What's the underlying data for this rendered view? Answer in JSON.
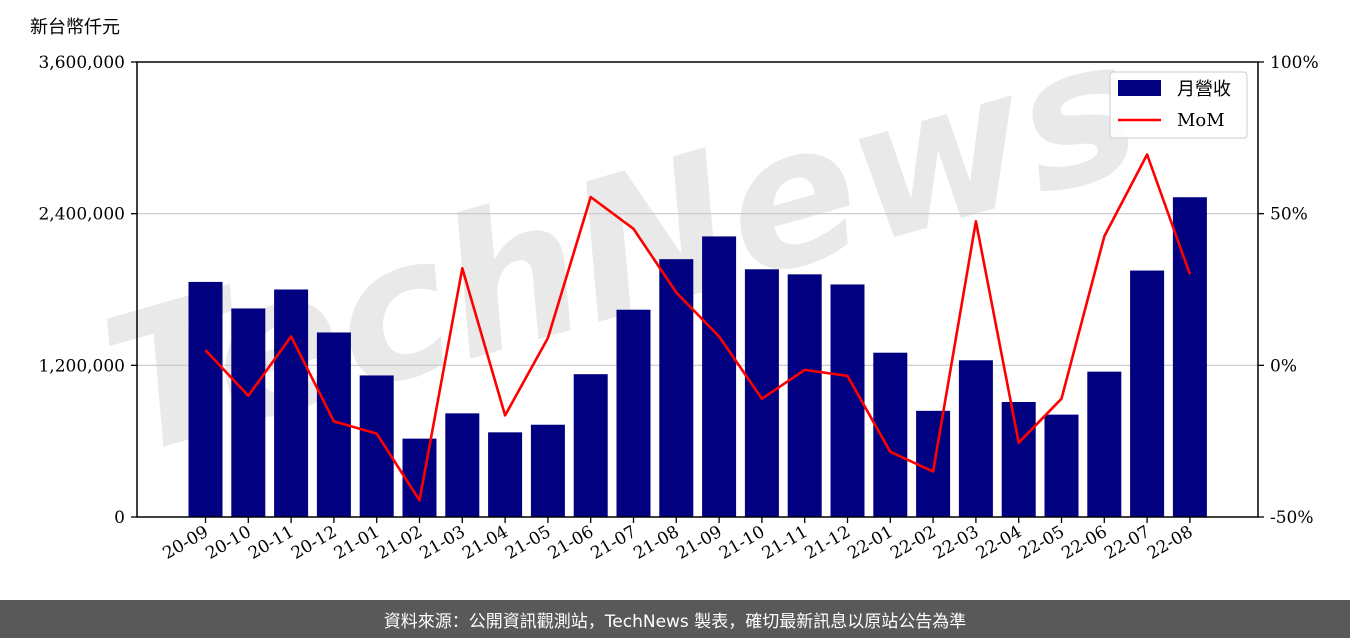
{
  "chart_data": {
    "type": "bar",
    "ylabel": "新台幣仟元",
    "categories": [
      "20-09",
      "20-10",
      "20-11",
      "20-12",
      "21-01",
      "21-02",
      "21-03",
      "21-04",
      "21-05",
      "21-06",
      "21-07",
      "21-08",
      "21-09",
      "21-10",
      "21-11",
      "21-12",
      "22-01",
      "22-02",
      "22-03",
      "22-04",
      "22-05",
      "22-06",
      "22-07",
      "22-08"
    ],
    "series": [
      {
        "name": "月營收",
        "type": "bar",
        "axis": "left",
        "color": "#000080",
        "values": [
          1860000,
          1650000,
          1800000,
          1460000,
          1120000,
          620000,
          820000,
          670000,
          730000,
          1130000,
          1640000,
          2040000,
          2220000,
          1960000,
          1920000,
          1840000,
          1300000,
          840000,
          1240000,
          910000,
          810000,
          1150000,
          1950000,
          2530000
        ]
      },
      {
        "name": "MoM",
        "type": "line",
        "axis": "right",
        "color": "#ff0000",
        "values": [
          5,
          -10,
          9.5,
          -18.5,
          -22.5,
          -44.5,
          32,
          -16.5,
          9,
          55.5,
          45,
          24,
          9.5,
          -11,
          -1.5,
          -3.5,
          -28.5,
          -35,
          47.5,
          -25.5,
          -11,
          42.5,
          69.5,
          30
        ]
      }
    ],
    "ylim_left": [
      0,
      3600000
    ],
    "ylim_right": [
      -50,
      100
    ],
    "yticks_left": [
      "0",
      "1,200,000",
      "2,400,000",
      "3,600,000"
    ],
    "yticks_right": [
      "-50%",
      "0%",
      "50%",
      "100%"
    ],
    "grid": "horizontal",
    "legend_position": "top-right"
  },
  "watermark": "TechNews",
  "footer": "資料來源：公開資訊觀測站，TechNews 製表，確切最新訊息以原站公告為準"
}
